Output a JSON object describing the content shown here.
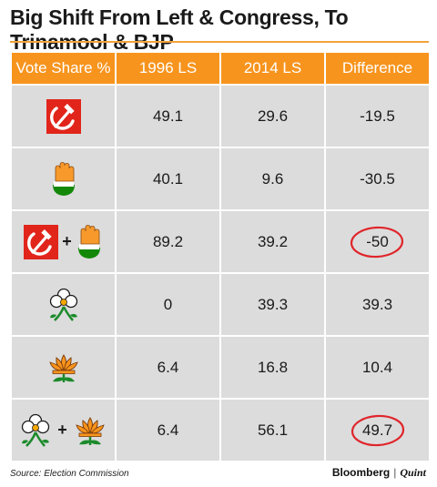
{
  "title": "Big Shift From Left & Congress, To Trinamool & BJP",
  "headers": [
    "Vote Share %",
    "1996 LS",
    "2014 LS",
    "Difference"
  ],
  "rows": [
    {
      "icons": [
        "hammer-sickle-icon"
      ],
      "v1996": "49.1",
      "v2014": "29.6",
      "diff": "-19.5",
      "circled": false
    },
    {
      "icons": [
        "congress-hand-icon"
      ],
      "v1996": "40.1",
      "v2014": "9.6",
      "diff": "-30.5",
      "circled": false
    },
    {
      "icons": [
        "hammer-sickle-icon",
        "congress-hand-icon"
      ],
      "v1996": "89.2",
      "v2014": "39.2",
      "diff": "-50",
      "circled": true
    },
    {
      "icons": [
        "trinamool-flower-icon"
      ],
      "v1996": "0",
      "v2014": "39.3",
      "diff": "39.3",
      "circled": false
    },
    {
      "icons": [
        "bjp-lotus-icon"
      ],
      "v1996": "6.4",
      "v2014": "16.8",
      "diff": "10.4",
      "circled": false
    },
    {
      "icons": [
        "trinamool-flower-icon",
        "bjp-lotus-icon"
      ],
      "v1996": "6.4",
      "v2014": "56.1",
      "diff": "49.7",
      "circled": true
    }
  ],
  "plus_sign": "+",
  "source": "Source: Election Commission",
  "brand": {
    "name": "Bloomberg",
    "separator": "|",
    "partner": "Quint"
  },
  "colors": {
    "header_bg": "#f7941d",
    "cell_bg": "#dcdcdc",
    "circle": "#e0252b",
    "cpi_red": "#e1251b"
  }
}
